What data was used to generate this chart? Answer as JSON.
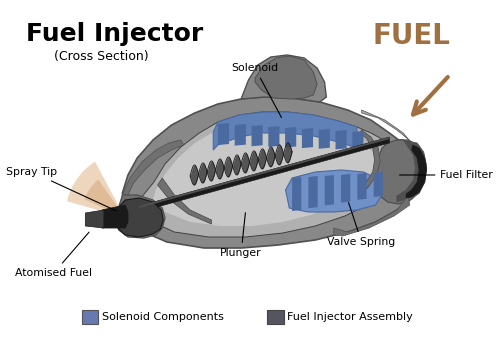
{
  "title": "Fuel Injector",
  "subtitle": "(Cross Section)",
  "fuel_label": "FUEL",
  "fuel_color": "#A07040",
  "bg_color": "#ffffff",
  "body_color": "#888888",
  "body_mid": "#707070",
  "body_dark": "#505050",
  "body_light": "#aaaaaa",
  "body_lighter": "#c8c8c8",
  "inner_color": "#b0b0b0",
  "solenoid_blue": "#6080b8",
  "solenoid_blue2": "#4a6aa0",
  "solenoid_blue3": "#7090c8",
  "dark_color": "#303030",
  "black": "#1a1a1a",
  "charcoal": "#404040",
  "legend_blue": "#6878b0",
  "legend_gray": "#555560",
  "spray_light": "#e8c8a8",
  "spray_mid": "#d4a878",
  "annotations_fontsize": 7.8,
  "title_fontsize": 18,
  "subtitle_fontsize": 9
}
